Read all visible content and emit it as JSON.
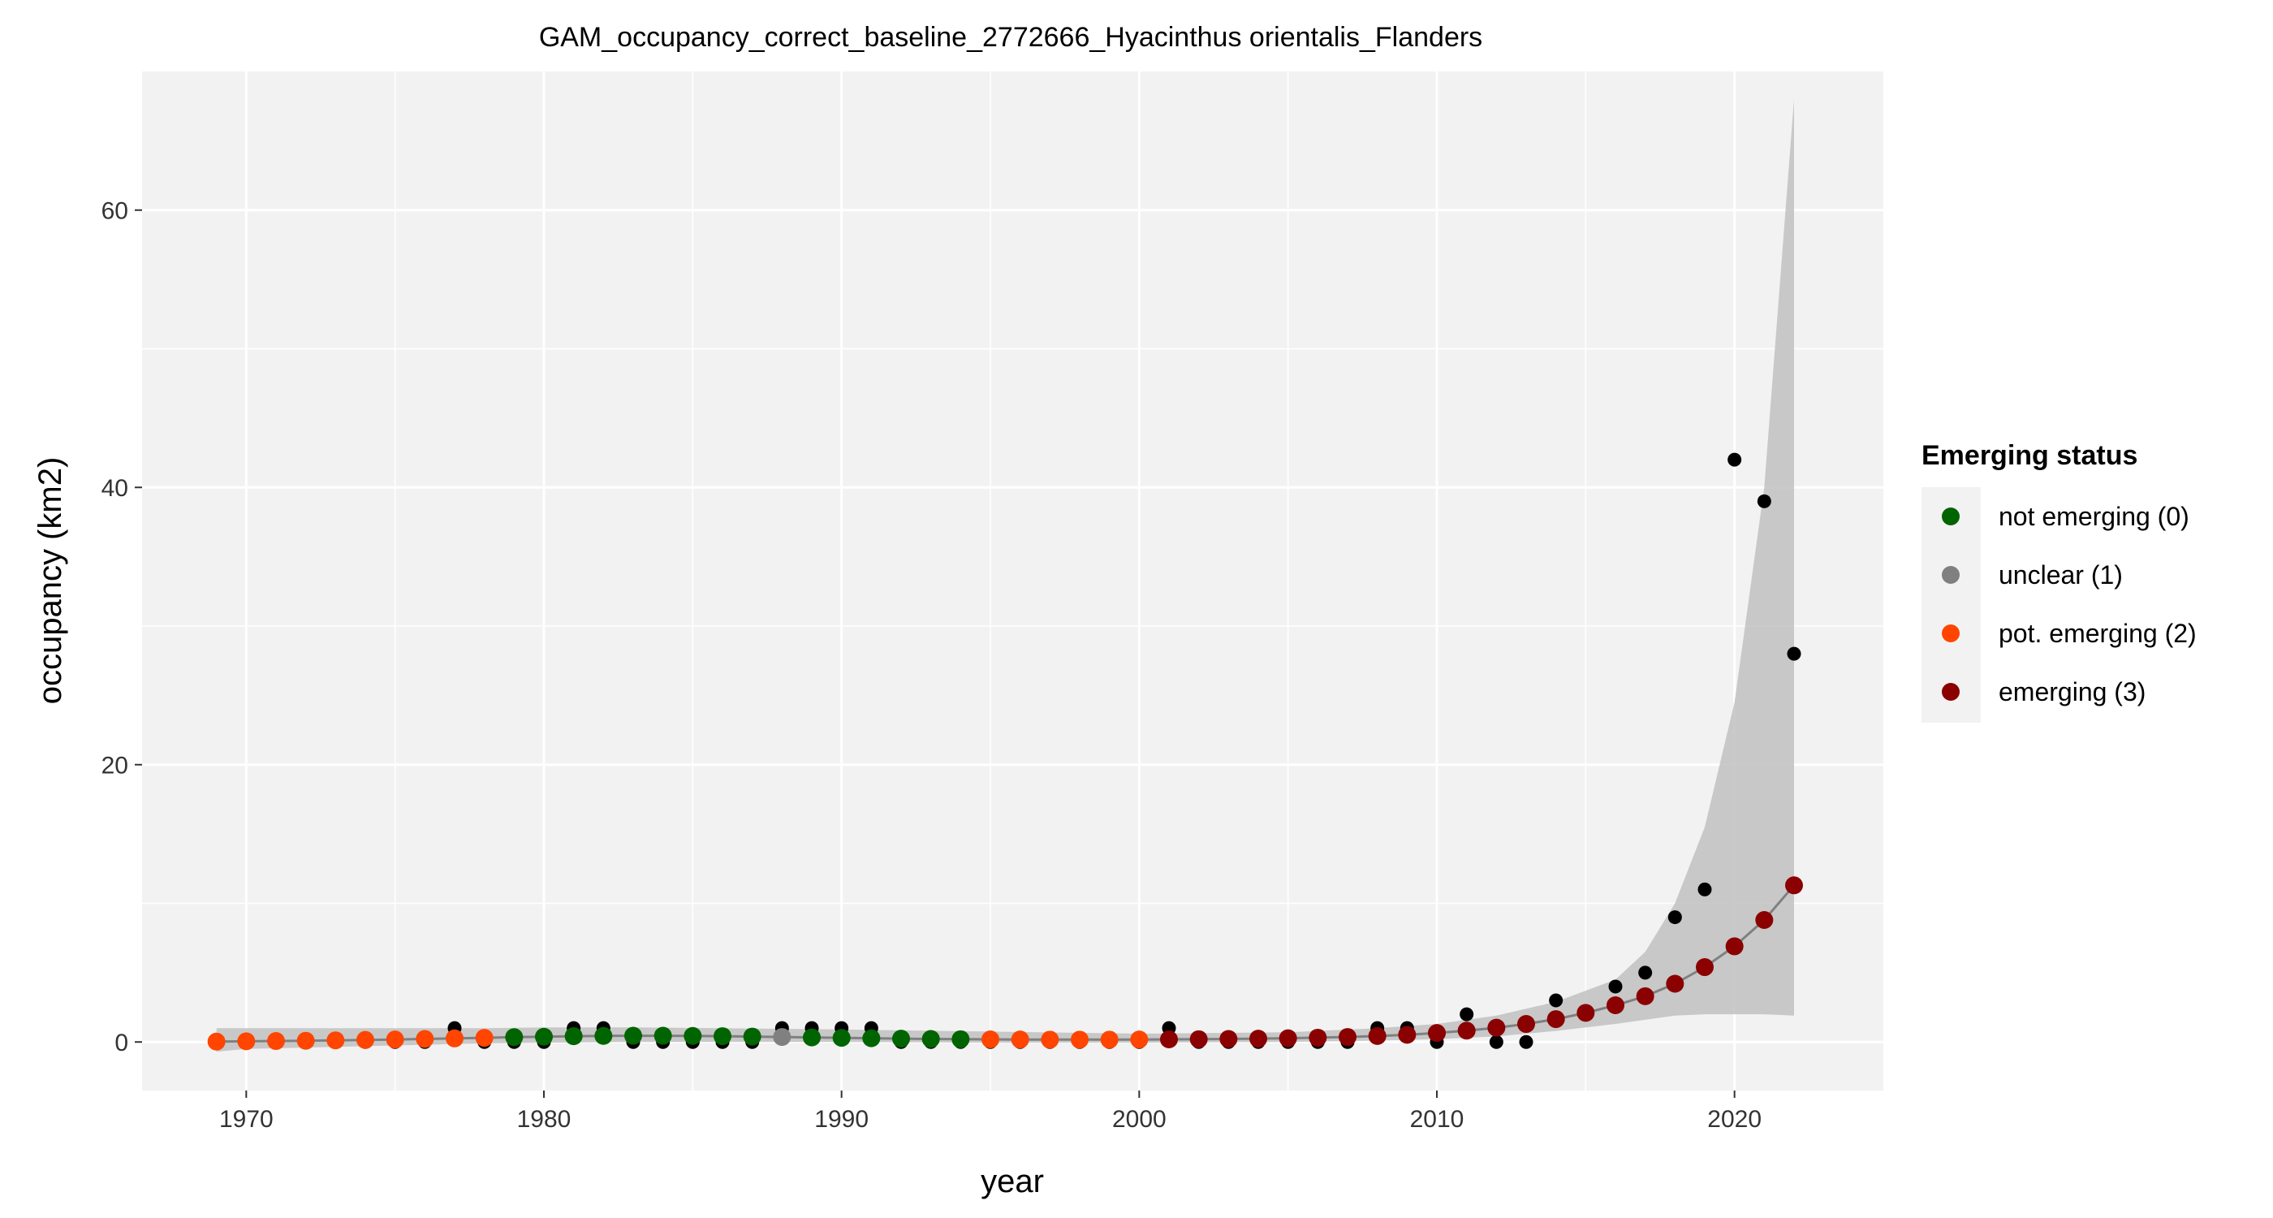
{
  "chart_data": {
    "type": "scatter",
    "title": "GAM_occupancy_correct_baseline_2772666_Hyacinthus orientalis_Flanders",
    "xlabel": "year",
    "ylabel": "occupancy (km2)",
    "xlim": [
      1966.5,
      2025
    ],
    "ylim": [
      -3.5,
      70
    ],
    "x_ticks": [
      1970,
      1980,
      1990,
      2000,
      2010,
      2020
    ],
    "y_ticks": [
      0,
      20,
      40,
      60
    ],
    "grid": true,
    "legend_position": "right",
    "legend_title": "Emerging status",
    "status_series": [
      {
        "code": 0,
        "name": "not emerging (0)",
        "color": "#006400"
      },
      {
        "code": 1,
        "name": "unclear (1)",
        "color": "#808080"
      },
      {
        "code": 2,
        "name": "pot. emerging (2)",
        "color": "#FF4500"
      },
      {
        "code": 3,
        "name": "emerging (3)",
        "color": "#8B0000"
      }
    ],
    "observed": {
      "color": "#000000",
      "x": [
        1969,
        1970,
        1971,
        1972,
        1973,
        1974,
        1975,
        1976,
        1977,
        1978,
        1979,
        1980,
        1981,
        1982,
        1983,
        1984,
        1985,
        1986,
        1987,
        1988,
        1989,
        1990,
        1991,
        1992,
        1993,
        1994,
        1995,
        1996,
        1997,
        1998,
        1999,
        2000,
        2001,
        2002,
        2003,
        2004,
        2005,
        2006,
        2007,
        2008,
        2009,
        2010,
        2011,
        2012,
        2013,
        2014,
        2015,
        2016,
        2017,
        2018,
        2019,
        2020,
        2021,
        2022
      ],
      "y": [
        0,
        0,
        0,
        0,
        0,
        0,
        0,
        0,
        1,
        0,
        0,
        0,
        1,
        1,
        0,
        0,
        0,
        0,
        0,
        1,
        1,
        1,
        1,
        0,
        0,
        0,
        0,
        0,
        0,
        0,
        0,
        0,
        1,
        0,
        0,
        0,
        0,
        0,
        0,
        1,
        1,
        0,
        2,
        0,
        0,
        3,
        2,
        4,
        5,
        9,
        11,
        42,
        39,
        28
      ]
    },
    "fitted": {
      "x": [
        1969,
        1970,
        1971,
        1972,
        1973,
        1974,
        1975,
        1976,
        1977,
        1978,
        1979,
        1980,
        1981,
        1982,
        1983,
        1984,
        1985,
        1986,
        1987,
        1988,
        1989,
        1990,
        1991,
        1992,
        1993,
        1994,
        1995,
        1996,
        1997,
        1998,
        1999,
        2000,
        2001,
        2002,
        2003,
        2004,
        2005,
        2006,
        2007,
        2008,
        2009,
        2010,
        2011,
        2012,
        2013,
        2014,
        2015,
        2016,
        2017,
        2018,
        2019,
        2020,
        2021,
        2022
      ],
      "y": [
        0.03,
        0.05,
        0.07,
        0.09,
        0.12,
        0.15,
        0.18,
        0.22,
        0.26,
        0.3,
        0.35,
        0.38,
        0.42,
        0.44,
        0.45,
        0.45,
        0.44,
        0.42,
        0.39,
        0.36,
        0.33,
        0.3,
        0.27,
        0.24,
        0.22,
        0.2,
        0.19,
        0.18,
        0.17,
        0.17,
        0.17,
        0.18,
        0.19,
        0.2,
        0.22,
        0.24,
        0.27,
        0.31,
        0.36,
        0.43,
        0.52,
        0.65,
        0.82,
        1.03,
        1.3,
        1.65,
        2.1,
        2.65,
        3.3,
        4.2,
        5.4,
        6.9,
        8.8,
        11.3
      ],
      "status": [
        2,
        2,
        2,
        2,
        2,
        2,
        2,
        2,
        2,
        2,
        0,
        0,
        0,
        0,
        0,
        0,
        0,
        0,
        0,
        1,
        0,
        0,
        0,
        0,
        0,
        0,
        2,
        2,
        2,
        2,
        2,
        2,
        3,
        3,
        3,
        3,
        3,
        3,
        3,
        3,
        3,
        3,
        3,
        3,
        3,
        3,
        3,
        3,
        3,
        3,
        3,
        3,
        3,
        3
      ]
    },
    "confidence_band": {
      "x": [
        1969,
        1970,
        1972,
        1975,
        1978,
        1980,
        1983,
        1986,
        1990,
        1995,
        2000,
        2005,
        2008,
        2010,
        2012,
        2014,
        2016,
        2017,
        2018,
        2019,
        2020,
        2021,
        2022
      ],
      "lower": [
        -0.7,
        -0.5,
        -0.4,
        -0.25,
        -0.1,
        -0.05,
        0,
        0,
        0,
        -0.05,
        -0.05,
        0,
        0.1,
        0.2,
        0.4,
        0.8,
        1.3,
        1.6,
        1.9,
        2.0,
        2.0,
        2.0,
        1.9
      ],
      "upper": [
        1.0,
        1.0,
        1.0,
        1.0,
        1.0,
        1.05,
        1.05,
        1.0,
        0.9,
        0.75,
        0.6,
        0.7,
        1.0,
        1.3,
        1.9,
        2.9,
        4.5,
        6.5,
        10.0,
        15.5,
        24.5,
        40.0,
        68.0
      ]
    }
  }
}
